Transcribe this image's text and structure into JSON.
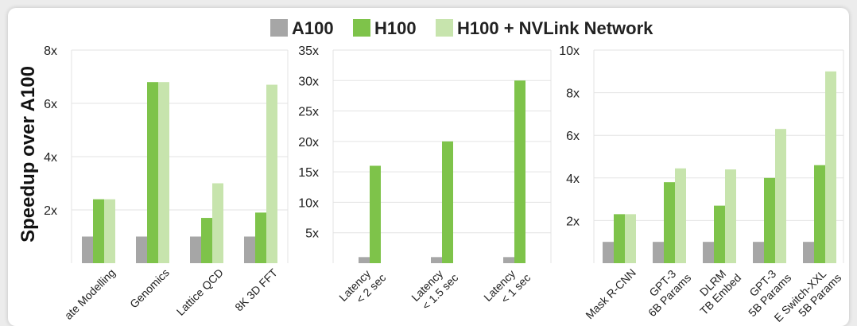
{
  "colors": {
    "A100": "#a6a6a6",
    "H100": "#7ec34a",
    "H100 + NVLink Network": "#c7e4ad",
    "grid": "#e3e3e3"
  },
  "legend": [
    "A100",
    "H100",
    "H100 + NVLink Network"
  ],
  "ylabel": "Speedup over A100",
  "chart_data": [
    {
      "type": "bar",
      "ylim": [
        0,
        8
      ],
      "yticks": [
        "2x",
        "4x",
        "6x",
        "8x"
      ],
      "ytick_values": [
        2,
        4,
        6,
        8
      ],
      "categories": [
        "ate Modelling",
        "Genomics",
        "Lattice QCD",
        "8K 3D FFT"
      ],
      "series": [
        {
          "name": "A100",
          "values": [
            1,
            1,
            1,
            1
          ]
        },
        {
          "name": "H100",
          "values": [
            2.4,
            6.8,
            1.7,
            1.9
          ]
        },
        {
          "name": "H100 + NVLink Network",
          "values": [
            2.4,
            6.8,
            3.0,
            6.7
          ]
        }
      ]
    },
    {
      "type": "bar",
      "ylim": [
        0,
        35
      ],
      "yticks": [
        "5x",
        "10x",
        "15x",
        "20x",
        "25x",
        "30x",
        "35x"
      ],
      "ytick_values": [
        5,
        10,
        15,
        20,
        25,
        30,
        35
      ],
      "categories": [
        [
          "Latency",
          "< 2 sec"
        ],
        [
          "Latency",
          "< 1.5 sec"
        ],
        [
          "Latency",
          "< 1 sec"
        ]
      ],
      "series": [
        {
          "name": "A100",
          "values": [
            1,
            1,
            1
          ]
        },
        {
          "name": "H100",
          "values": [
            16,
            20,
            30
          ]
        }
      ]
    },
    {
      "type": "bar",
      "ylim": [
        0,
        10
      ],
      "yticks": [
        "2x",
        "4x",
        "6x",
        "8x",
        "10x"
      ],
      "ytick_values": [
        2,
        4,
        6,
        8,
        10
      ],
      "categories": [
        [
          "Mask R-CNN"
        ],
        [
          "GPT-3",
          "6B Params"
        ],
        [
          "DLRM",
          "TB Embed"
        ],
        [
          "GPT-3",
          "5B Params"
        ],
        [
          "E Switch-XXL",
          "5B Params"
        ]
      ],
      "series": [
        {
          "name": "A100",
          "values": [
            1,
            1,
            1,
            1,
            1
          ]
        },
        {
          "name": "H100",
          "values": [
            2.3,
            3.8,
            2.7,
            4.0,
            4.6
          ]
        },
        {
          "name": "H100 + NVLink Network",
          "values": [
            2.3,
            4.45,
            4.4,
            6.3,
            9.0
          ]
        }
      ]
    }
  ]
}
